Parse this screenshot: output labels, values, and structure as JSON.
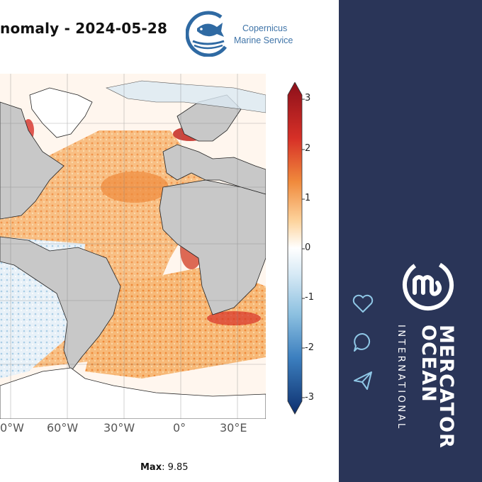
{
  "header": {
    "title": "nomaly - 2024-05-28"
  },
  "copernicus": {
    "line1": "Copernicus",
    "line2": "Marine Service",
    "brand_color": "#3f74a8"
  },
  "map": {
    "x_ticks": [
      "0°W",
      "60°W",
      "30°W",
      "0°",
      "30°E"
    ],
    "land_color": "#c8c8c8",
    "ocean_palette": [
      "#b2182b",
      "#ef8a62",
      "#fddbc7",
      "#ffffff",
      "#d1e5f0",
      "#67a9cf",
      "#2166ac"
    ]
  },
  "colorbar": {
    "ticks": [
      "3",
      "2",
      "1",
      "0",
      "-1",
      "-2",
      "-3"
    ],
    "range": [
      -3,
      3
    ]
  },
  "footer": {
    "max_label": "Max",
    "max_value": ": 9.85"
  },
  "sidebar": {
    "background": "#2a3558",
    "actions": [
      {
        "icon": "heart-icon",
        "label": "like"
      },
      {
        "icon": "comment-icon",
        "label": "comment"
      },
      {
        "icon": "share-icon",
        "label": "share"
      }
    ],
    "brand_line1": "MERCATOR",
    "brand_line2": "OCEAN",
    "brand_sub": "INTERNATIONAL"
  }
}
